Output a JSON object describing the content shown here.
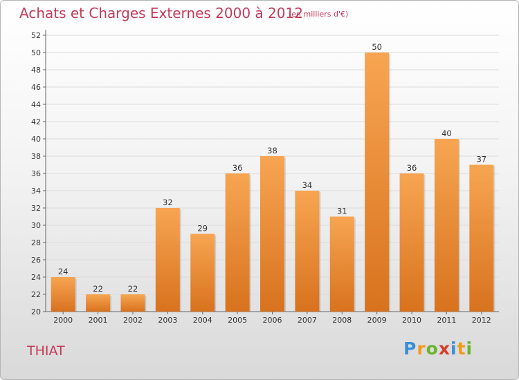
{
  "header": {
    "title": "Achats et Charges Externes 2000 à 2012",
    "subtitle": "(en milliers d'€)"
  },
  "footer": {
    "commune": "THIAT",
    "logo_letters": [
      {
        "ch": "P",
        "color": "#3b8fd6"
      },
      {
        "ch": "r",
        "color": "#f09a1c"
      },
      {
        "ch": "o",
        "color": "#6ab42d"
      },
      {
        "ch": "x",
        "color": "#d83a2a"
      },
      {
        "ch": "i",
        "color": "#3b8fd6"
      },
      {
        "ch": "t",
        "color": "#f09a1c"
      },
      {
        "ch": "i",
        "color": "#6ab42d"
      }
    ]
  },
  "chart_data": {
    "type": "bar",
    "title": "Achats et Charges Externes 2000 à 2012",
    "subtitle": "(en milliers d'€)",
    "categories": [
      "2000",
      "2001",
      "2002",
      "2003",
      "2004",
      "2005",
      "2006",
      "2007",
      "2008",
      "2009",
      "2010",
      "2011",
      "2012"
    ],
    "values": [
      24,
      22,
      22,
      32,
      29,
      36,
      38,
      34,
      31,
      50,
      36,
      40,
      37
    ],
    "ylim": [
      20,
      52
    ],
    "yticks": [
      20,
      22,
      24,
      26,
      28,
      30,
      32,
      34,
      36,
      38,
      40,
      42,
      44,
      46,
      48,
      50,
      52
    ],
    "grid": true,
    "bar_color": "#f0862a"
  }
}
